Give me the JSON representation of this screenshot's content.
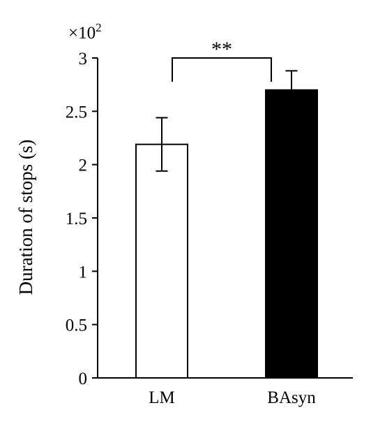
{
  "chart_data": {
    "type": "bar",
    "categories": [
      "LM",
      "BAsyn"
    ],
    "values": [
      2.19,
      2.7
    ],
    "errors": [
      0.25,
      0.18
    ],
    "bar_fills": [
      "#ffffff",
      "#000000"
    ],
    "ylabel": "Duration of stops (s)",
    "multiplier_label": "×10",
    "multiplier_exponent": "2",
    "ylim": [
      0,
      3
    ],
    "yticks": [
      {
        "value": 0,
        "label": "0"
      },
      {
        "value": 0.5,
        "label": "0.5"
      },
      {
        "value": 1,
        "label": "1"
      },
      {
        "value": 1.5,
        "label": "1.5"
      },
      {
        "value": 2,
        "label": "2"
      },
      {
        "value": 2.5,
        "label": "2.5"
      },
      {
        "value": 3,
        "label": "3"
      }
    ],
    "significance": {
      "label": "**",
      "between": [
        "LM",
        "BAsyn"
      ]
    },
    "grid": false,
    "legend": "none"
  }
}
